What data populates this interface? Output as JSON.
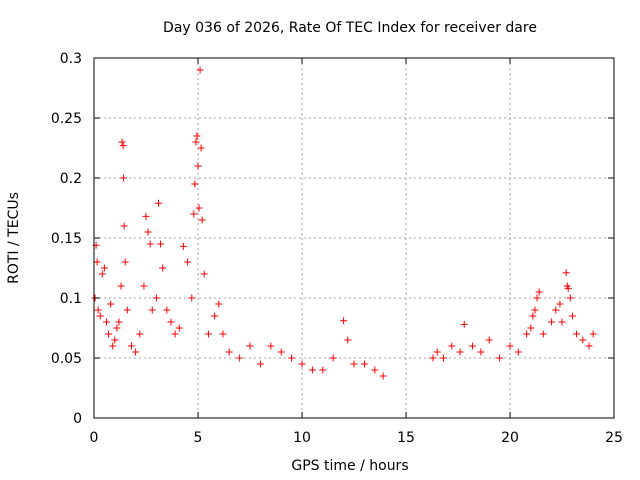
{
  "chart_data": {
    "type": "scatter",
    "title": "Day 036 of 2026, Rate Of TEC Index for receiver dare",
    "xlabel": "GPS time / hours",
    "ylabel": "ROTI / TECUs",
    "xlim": [
      0,
      25
    ],
    "ylim": [
      0,
      0.3
    ],
    "xticks": [
      0,
      5,
      10,
      15,
      20,
      25
    ],
    "yticks": [
      0,
      0.05,
      0.1,
      0.15,
      0.2,
      0.25,
      0.3
    ],
    "xtick_labels": [
      "0",
      "5",
      "10",
      "15",
      "20",
      "25"
    ],
    "ytick_labels": [
      "0",
      "0.05",
      "0.1",
      "0.15",
      "0.2",
      "0.25",
      "0.3"
    ],
    "grid": true,
    "marker": "+",
    "color": "#ff0000",
    "data_gap_hours": [
      14,
      16.1
    ],
    "series": [
      {
        "points": [
          [
            0.05,
            0.1
          ],
          [
            0.1,
            0.144
          ],
          [
            0.15,
            0.13
          ],
          [
            0.2,
            0.09
          ],
          [
            0.3,
            0.085
          ],
          [
            0.4,
            0.12
          ],
          [
            0.5,
            0.125
          ],
          [
            0.6,
            0.08
          ],
          [
            0.7,
            0.07
          ],
          [
            0.8,
            0.095
          ],
          [
            0.9,
            0.06
          ],
          [
            1.0,
            0.065
          ],
          [
            1.1,
            0.075
          ],
          [
            1.2,
            0.08
          ],
          [
            1.3,
            0.11
          ],
          [
            1.35,
            0.23
          ],
          [
            1.4,
            0.227
          ],
          [
            1.42,
            0.2
          ],
          [
            1.45,
            0.16
          ],
          [
            1.5,
            0.13
          ],
          [
            1.6,
            0.09
          ],
          [
            1.8,
            0.06
          ],
          [
            2.0,
            0.055
          ],
          [
            2.2,
            0.07
          ],
          [
            2.4,
            0.11
          ],
          [
            2.5,
            0.168
          ],
          [
            2.6,
            0.155
          ],
          [
            2.7,
            0.145
          ],
          [
            2.8,
            0.09
          ],
          [
            3.0,
            0.1
          ],
          [
            3.1,
            0.179
          ],
          [
            3.2,
            0.145
          ],
          [
            3.3,
            0.125
          ],
          [
            3.5,
            0.09
          ],
          [
            3.7,
            0.08
          ],
          [
            3.9,
            0.07
          ],
          [
            4.1,
            0.075
          ],
          [
            4.3,
            0.143
          ],
          [
            4.5,
            0.13
          ],
          [
            4.7,
            0.1
          ],
          [
            4.8,
            0.17
          ],
          [
            4.85,
            0.195
          ],
          [
            4.9,
            0.23
          ],
          [
            4.95,
            0.235
          ],
          [
            5.0,
            0.21
          ],
          [
            5.05,
            0.175
          ],
          [
            5.1,
            0.29
          ],
          [
            5.15,
            0.225
          ],
          [
            5.2,
            0.165
          ],
          [
            5.3,
            0.12
          ],
          [
            5.5,
            0.07
          ],
          [
            5.8,
            0.085
          ],
          [
            6.0,
            0.095
          ],
          [
            6.2,
            0.07
          ],
          [
            6.5,
            0.055
          ],
          [
            7.0,
            0.05
          ],
          [
            7.5,
            0.06
          ],
          [
            8.0,
            0.045
          ],
          [
            8.5,
            0.06
          ],
          [
            9.0,
            0.055
          ],
          [
            9.5,
            0.05
          ],
          [
            10.0,
            0.045
          ],
          [
            10.5,
            0.04
          ],
          [
            11.0,
            0.04
          ],
          [
            11.5,
            0.05
          ],
          [
            12.0,
            0.081
          ],
          [
            12.2,
            0.065
          ],
          [
            12.5,
            0.045
          ],
          [
            13.0,
            0.045
          ],
          [
            13.5,
            0.04
          ],
          [
            13.9,
            0.035
          ],
          [
            16.3,
            0.05
          ],
          [
            16.5,
            0.055
          ],
          [
            16.8,
            0.05
          ],
          [
            17.2,
            0.06
          ],
          [
            17.6,
            0.055
          ],
          [
            17.8,
            0.078
          ],
          [
            18.2,
            0.06
          ],
          [
            18.6,
            0.055
          ],
          [
            19.0,
            0.065
          ],
          [
            19.5,
            0.05
          ],
          [
            20.0,
            0.06
          ],
          [
            20.4,
            0.055
          ],
          [
            20.8,
            0.07
          ],
          [
            21.0,
            0.075
          ],
          [
            21.1,
            0.085
          ],
          [
            21.2,
            0.09
          ],
          [
            21.3,
            0.1
          ],
          [
            21.4,
            0.105
          ],
          [
            21.6,
            0.07
          ],
          [
            22.0,
            0.08
          ],
          [
            22.2,
            0.09
          ],
          [
            22.4,
            0.095
          ],
          [
            22.5,
            0.08
          ],
          [
            22.7,
            0.121
          ],
          [
            22.75,
            0.11
          ],
          [
            22.8,
            0.108
          ],
          [
            22.9,
            0.1
          ],
          [
            23.0,
            0.085
          ],
          [
            23.2,
            0.07
          ],
          [
            23.5,
            0.065
          ],
          [
            23.8,
            0.06
          ],
          [
            24.0,
            0.07
          ]
        ]
      }
    ]
  }
}
